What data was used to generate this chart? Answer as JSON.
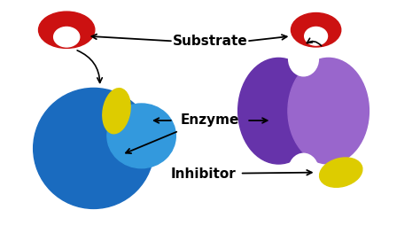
{
  "bg_color": "#ffffff",
  "labels": {
    "substrate": "Substrate",
    "enzyme": "Enzyme",
    "inhibitor": "Inhibitor"
  },
  "colors": {
    "red": "#cc1111",
    "blue_main": "#1a6bbf",
    "blue_light": "#3399dd",
    "yellow": "#ddcc00",
    "purple_dark": "#6633aa",
    "purple_light": "#9966cc"
  },
  "label_fontsize": 11,
  "label_fontweight": "bold"
}
